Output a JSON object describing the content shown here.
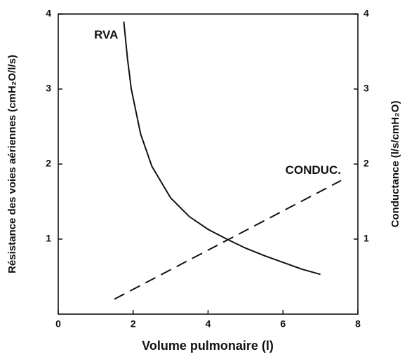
{
  "chart_data": {
    "type": "line",
    "xlabel": "Volume pulmonaire (l)",
    "ylabel": "Résistance des voies aériennes (cmH₂O/l/s)",
    "y2label": "Conductance (l/s/cmH₂O)",
    "xlim": [
      0,
      8
    ],
    "xticks": [
      0,
      2,
      4,
      6,
      8
    ],
    "ylim": [
      0,
      4
    ],
    "yticks": [
      1,
      2,
      3,
      4
    ],
    "y2lim": [
      0,
      4
    ],
    "y2ticks": [
      1,
      2,
      3,
      4
    ],
    "series": [
      {
        "name": "RVA",
        "color": "#111111",
        "style": "solid",
        "x": [
          1.75,
          1.85,
          1.95,
          2.2,
          2.5,
          3,
          3.5,
          4,
          4.5,
          5,
          5.5,
          6,
          6.5,
          7
        ],
        "values": [
          3.9,
          3.4,
          3.0,
          2.4,
          1.97,
          1.55,
          1.3,
          1.13,
          1.0,
          0.88,
          0.78,
          0.69,
          0.6,
          0.53
        ]
      },
      {
        "name": "CONDUC.",
        "color": "#111111",
        "style": "dashed",
        "axis": "y2",
        "x": [
          1.5,
          7.55
        ],
        "values": [
          0.2,
          1.78
        ]
      }
    ]
  }
}
